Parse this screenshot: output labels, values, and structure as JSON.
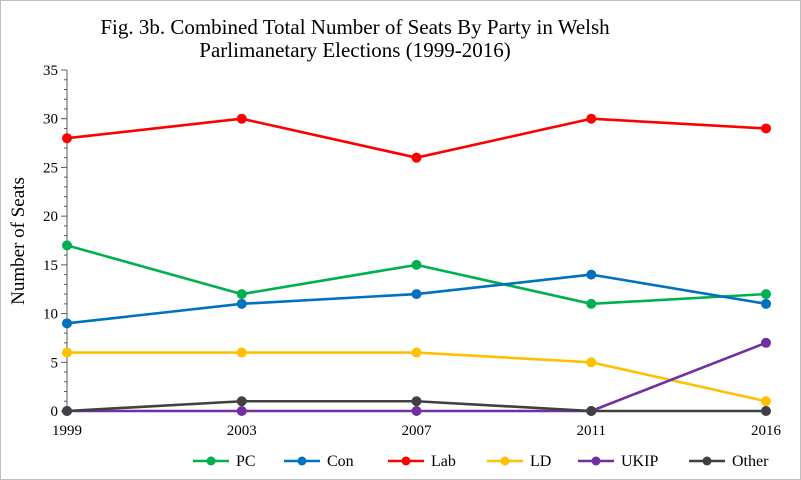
{
  "chart_data": {
    "type": "line",
    "title_lines": [
      "Fig. 3b. Combined Total Number of Seats By Party in Welsh",
      "Parlimanetary Elections (1999-2016)"
    ],
    "xlabel": "",
    "ylabel": "Number of Seats",
    "categories": [
      "1999",
      "2003",
      "2007",
      "2011",
      "2016"
    ],
    "ylim": [
      0,
      35
    ],
    "yticks": [
      0,
      5,
      10,
      15,
      20,
      25,
      30,
      35
    ],
    "grid": false,
    "legend_position": "bottom",
    "series": [
      {
        "name": "PC",
        "color": "#00b050",
        "values": [
          17,
          12,
          15,
          11,
          12
        ]
      },
      {
        "name": "Con",
        "color": "#0070c0",
        "values": [
          9,
          11,
          12,
          14,
          11
        ]
      },
      {
        "name": "Lab",
        "color": "#ff0000",
        "values": [
          28,
          30,
          26,
          30,
          29
        ]
      },
      {
        "name": "LD",
        "color": "#ffc000",
        "values": [
          6,
          6,
          6,
          5,
          1
        ]
      },
      {
        "name": "UKIP",
        "color": "#7030a0",
        "values": [
          0,
          0,
          0,
          0,
          7
        ]
      },
      {
        "name": "Other",
        "color": "#404040",
        "values": [
          0,
          1,
          1,
          0,
          0
        ]
      }
    ]
  }
}
